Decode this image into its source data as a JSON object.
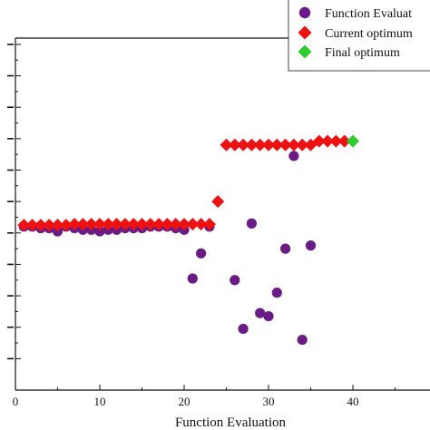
{
  "chart_data": {
    "type": "scatter",
    "title": "",
    "xlabel": "Function Evaluation",
    "ylabel": "",
    "xlim": [
      0,
      50
    ],
    "ylim": [
      0,
      11.2
    ],
    "x_ticks": [
      0,
      10,
      20,
      30,
      40
    ],
    "y_ticks": [
      1,
      2,
      3,
      4,
      5,
      6,
      7,
      8,
      9,
      10,
      11
    ],
    "y_tick_labels": [
      "",
      "",
      "",
      "",
      "",
      "",
      "",
      "",
      "",
      "",
      ""
    ],
    "grid": false,
    "legend_position": "top-right",
    "series": [
      {
        "name": "Function Evaluat",
        "marker": "circle",
        "color": "#6a1b86",
        "points": [
          {
            "x": 1,
            "y": 5.2
          },
          {
            "x": 2,
            "y": 5.2
          },
          {
            "x": 3,
            "y": 5.15
          },
          {
            "x": 4,
            "y": 5.15
          },
          {
            "x": 5,
            "y": 5.05
          },
          {
            "x": 6,
            "y": 5.2
          },
          {
            "x": 7,
            "y": 5.15
          },
          {
            "x": 8,
            "y": 5.1
          },
          {
            "x": 9,
            "y": 5.1
          },
          {
            "x": 10,
            "y": 5.05
          },
          {
            "x": 11,
            "y": 5.1
          },
          {
            "x": 12,
            "y": 5.1
          },
          {
            "x": 13,
            "y": 5.15
          },
          {
            "x": 14,
            "y": 5.15
          },
          {
            "x": 15,
            "y": 5.15
          },
          {
            "x": 16,
            "y": 5.2
          },
          {
            "x": 17,
            "y": 5.2
          },
          {
            "x": 18,
            "y": 5.2
          },
          {
            "x": 19,
            "y": 5.15
          },
          {
            "x": 20,
            "y": 5.1
          },
          {
            "x": 21,
            "y": 3.55
          },
          {
            "x": 22,
            "y": 4.35
          },
          {
            "x": 23,
            "y": 5.2
          },
          {
            "x": 26,
            "y": 3.5
          },
          {
            "x": 27,
            "y": 1.95
          },
          {
            "x": 28,
            "y": 5.3
          },
          {
            "x": 29,
            "y": 2.45
          },
          {
            "x": 30,
            "y": 2.35
          },
          {
            "x": 31,
            "y": 3.1
          },
          {
            "x": 32,
            "y": 4.5
          },
          {
            "x": 33,
            "y": 7.45
          },
          {
            "x": 34,
            "y": 1.6
          },
          {
            "x": 35,
            "y": 4.6
          }
        ]
      },
      {
        "name": "Current optimum",
        "marker": "diamond",
        "color": "#ee1111",
        "points": [
          {
            "x": 1,
            "y": 5.25
          },
          {
            "x": 2,
            "y": 5.25
          },
          {
            "x": 3,
            "y": 5.25
          },
          {
            "x": 4,
            "y": 5.25
          },
          {
            "x": 5,
            "y": 5.25
          },
          {
            "x": 6,
            "y": 5.25
          },
          {
            "x": 7,
            "y": 5.28
          },
          {
            "x": 8,
            "y": 5.28
          },
          {
            "x": 9,
            "y": 5.28
          },
          {
            "x": 10,
            "y": 5.28
          },
          {
            "x": 11,
            "y": 5.28
          },
          {
            "x": 12,
            "y": 5.28
          },
          {
            "x": 13,
            "y": 5.28
          },
          {
            "x": 14,
            "y": 5.28
          },
          {
            "x": 15,
            "y": 5.28
          },
          {
            "x": 16,
            "y": 5.28
          },
          {
            "x": 17,
            "y": 5.28
          },
          {
            "x": 18,
            "y": 5.28
          },
          {
            "x": 19,
            "y": 5.28
          },
          {
            "x": 20,
            "y": 5.28
          },
          {
            "x": 21,
            "y": 5.28
          },
          {
            "x": 22,
            "y": 5.28
          },
          {
            "x": 23,
            "y": 5.28
          },
          {
            "x": 24,
            "y": 6.0
          },
          {
            "x": 25,
            "y": 7.8
          },
          {
            "x": 26,
            "y": 7.8
          },
          {
            "x": 27,
            "y": 7.8
          },
          {
            "x": 28,
            "y": 7.8
          },
          {
            "x": 29,
            "y": 7.8
          },
          {
            "x": 30,
            "y": 7.8
          },
          {
            "x": 31,
            "y": 7.8
          },
          {
            "x": 32,
            "y": 7.8
          },
          {
            "x": 33,
            "y": 7.8
          },
          {
            "x": 34,
            "y": 7.8
          },
          {
            "x": 35,
            "y": 7.8
          },
          {
            "x": 36,
            "y": 7.92
          },
          {
            "x": 37,
            "y": 7.92
          },
          {
            "x": 38,
            "y": 7.92
          },
          {
            "x": 39,
            "y": 7.92
          }
        ]
      },
      {
        "name": "Final optimum",
        "marker": "diamond",
        "color": "#2ecc2e",
        "points": [
          {
            "x": 40,
            "y": 7.92
          }
        ]
      }
    ]
  }
}
